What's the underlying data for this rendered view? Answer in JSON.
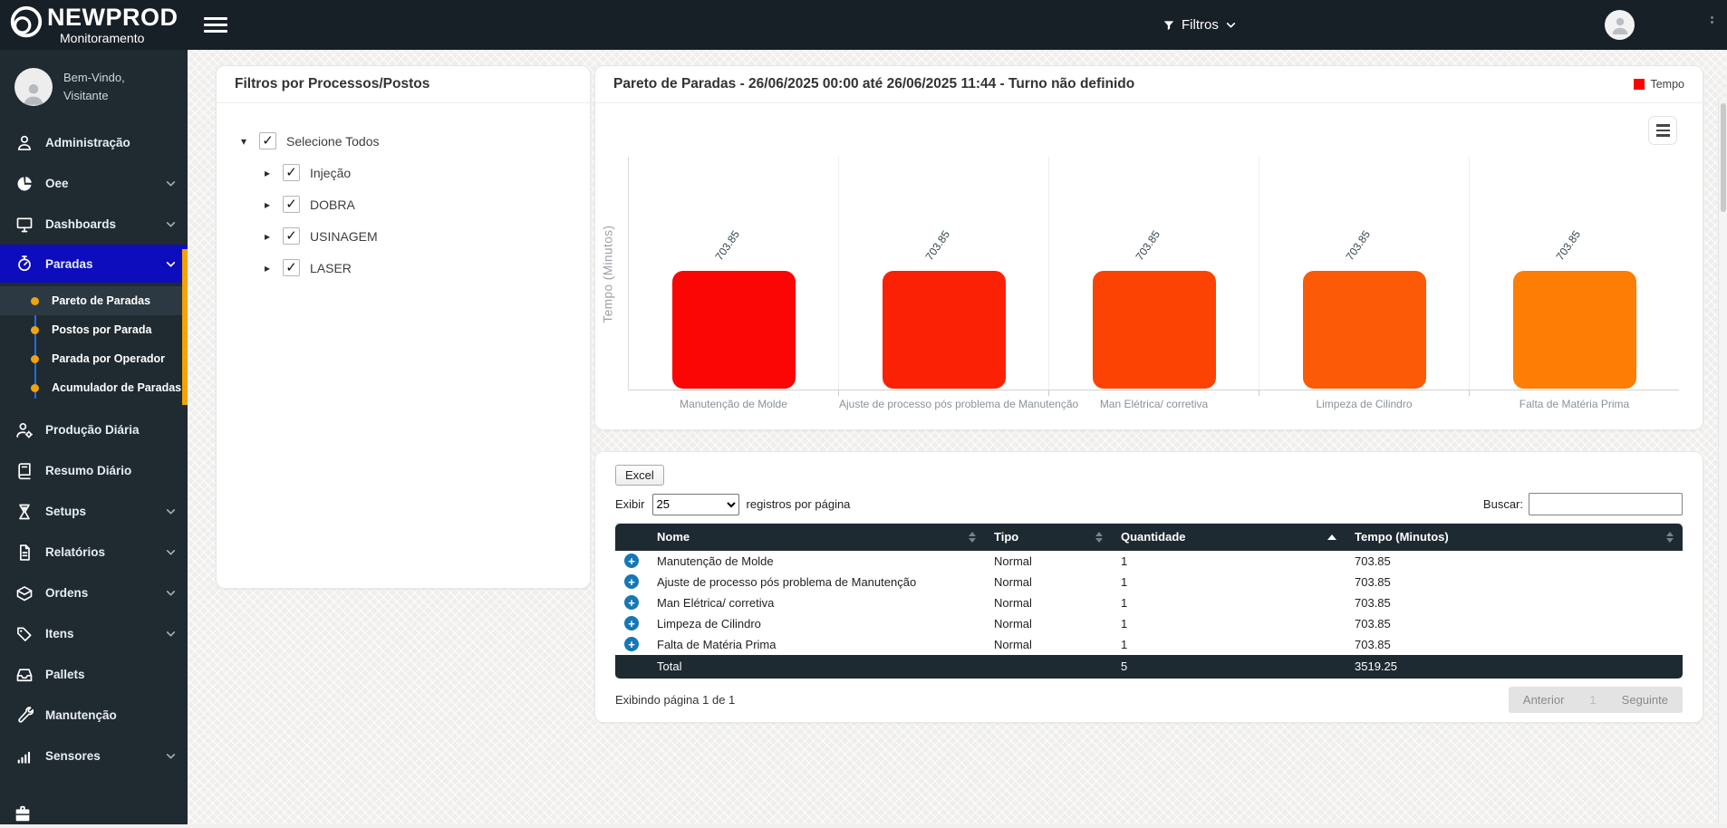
{
  "topbar": {
    "brand": "NEWPROD",
    "brand_subtitle": "Monitoramento",
    "filters_button": "Filtros"
  },
  "sidebar": {
    "welcome": "Bem-Vindo,",
    "user": "Visitante",
    "accent_color": "#f3a302",
    "active_color": "#0d0dbd",
    "items": [
      {
        "label": "Administração",
        "icon": "admin-user-icon",
        "expandable": false
      },
      {
        "label": "Oee",
        "icon": "pie-chart-icon",
        "expandable": true
      },
      {
        "label": "Dashboards",
        "icon": "monitor-icon",
        "expandable": true
      },
      {
        "label": "Paradas",
        "icon": "stopwatch-icon",
        "expandable": true,
        "active": true,
        "expanded": true,
        "children": [
          {
            "label": "Pareto de Paradas",
            "active": true
          },
          {
            "label": "Postos por Parada",
            "active": false
          },
          {
            "label": "Parada por Operador",
            "active": false
          },
          {
            "label": "Acumulador de Paradas",
            "active": false
          }
        ]
      },
      {
        "label": "Produção Diária",
        "icon": "user-gear-icon",
        "expandable": false
      },
      {
        "label": "Resumo Diário",
        "icon": "book-icon",
        "expandable": false
      },
      {
        "label": "Setups",
        "icon": "hourglass-icon",
        "expandable": true
      },
      {
        "label": "Relatórios",
        "icon": "file-icon",
        "expandable": true
      },
      {
        "label": "Ordens",
        "icon": "box-icon",
        "expandable": true
      },
      {
        "label": "Itens",
        "icon": "tags-icon",
        "expandable": true
      },
      {
        "label": "Pallets",
        "icon": "inbox-icon",
        "expandable": false
      },
      {
        "label": "Manutenção",
        "icon": "tools-icon",
        "expandable": false
      },
      {
        "label": "Sensores",
        "icon": "signal-icon",
        "expandable": true
      }
    ]
  },
  "filters_panel": {
    "title": "Filtros por Processos/Postos",
    "root": {
      "label": "Selecione Todos",
      "checked": true,
      "expanded": true
    },
    "children": [
      {
        "label": "Injeção",
        "checked": true
      },
      {
        "label": "DOBRA",
        "checked": true
      },
      {
        "label": "USINAGEM",
        "checked": true
      },
      {
        "label": "LASER",
        "checked": true
      }
    ]
  },
  "chart_card": {
    "title": "Pareto de Paradas - 26/06/2025 00:00 até 26/06/2025 11:44 - Turno não definido",
    "legend": [
      {
        "label": "Tempo",
        "color": "#ff0000"
      }
    ]
  },
  "chart_data": {
    "type": "bar",
    "title": "Pareto de Paradas - 26/06/2025 00:00 até 26/06/2025 11:44 - Turno não definido",
    "categories": [
      "Manutenção de Molde",
      "Ajuste de processo pós problema de Manutenção",
      "Man Elétrica/ corretiva",
      "Limpeza de Cilindro",
      "Falta de Matéria Prima"
    ],
    "values": [
      703.85,
      703.85,
      703.85,
      703.85,
      703.85
    ],
    "value_labels": [
      "703.85",
      "703.85",
      "703.85",
      "703.85",
      "703.85"
    ],
    "bar_colors": [
      "#fb0505",
      "#fb2104",
      "#fc4304",
      "#fd5a08",
      "#fd7d05"
    ],
    "xlabel": "",
    "ylabel": "Tempo (Minutos)",
    "legend_entries": [
      "Tempo"
    ],
    "legend_position": "top-right",
    "grid": "vertical-between-categories",
    "y_tick_labels_visible": false
  },
  "table": {
    "excel_button": "Excel",
    "show_label": "Exibir",
    "page_size": "25",
    "per_page_label": "registros por página",
    "search_label": "Buscar:",
    "search_value": "",
    "columns": [
      "Nome",
      "Tipo",
      "Quantidade",
      "Tempo (Minutos)"
    ],
    "sorted_column": "Quantidade",
    "sort_direction": "asc",
    "rows": [
      {
        "name": "Manutenção de Molde",
        "tipo": "Normal",
        "quantidade": "1",
        "tempo": "703.85"
      },
      {
        "name": "Ajuste de processo pós problema de Manutenção",
        "tipo": "Normal",
        "quantidade": "1",
        "tempo": "703.85"
      },
      {
        "name": "Man Elétrica/ corretiva",
        "tipo": "Normal",
        "quantidade": "1",
        "tempo": "703.85"
      },
      {
        "name": "Limpeza de Cilindro",
        "tipo": "Normal",
        "quantidade": "1",
        "tempo": "703.85"
      },
      {
        "name": "Falta de Matéria Prima",
        "tipo": "Normal",
        "quantidade": "1",
        "tempo": "703.85"
      }
    ],
    "total_row": {
      "label": "Total",
      "quantidade": "5",
      "tempo": "3519.25"
    },
    "footer": "Exibindo página 1 de 1",
    "pagination": {
      "previous": "Anterior",
      "current": "1",
      "next": "Seguinte"
    }
  }
}
